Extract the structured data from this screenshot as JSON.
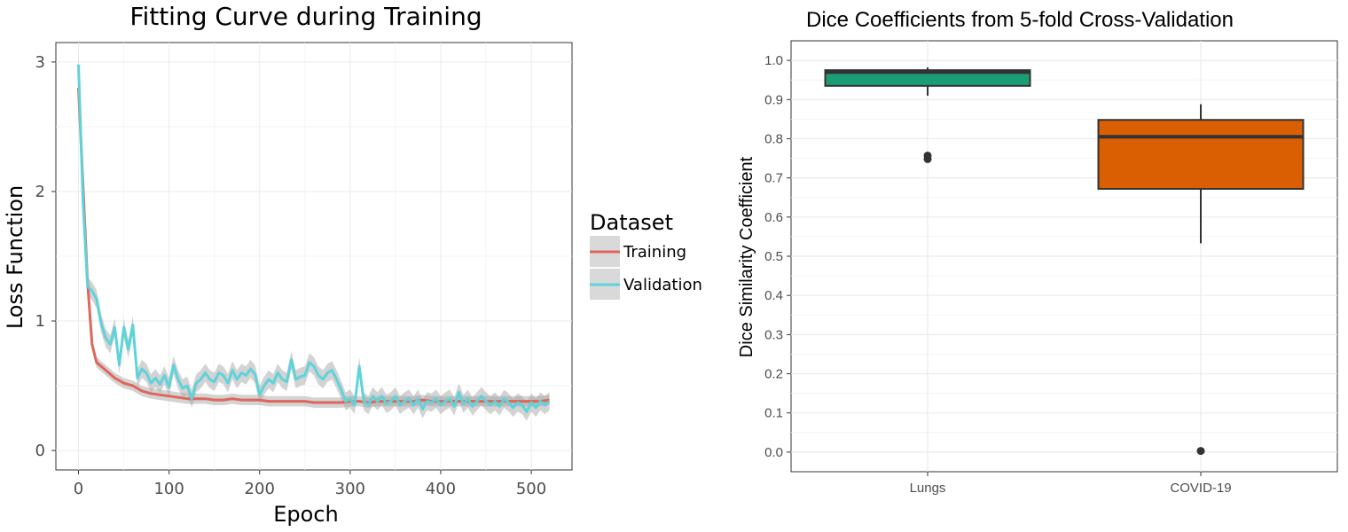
{
  "chart_data": [
    {
      "type": "line",
      "title": "Fitting Curve during Training",
      "xlabel": "Epoch",
      "ylabel": "Loss Function",
      "xlim": [
        -25,
        545
      ],
      "ylim": [
        -0.15,
        3.15
      ],
      "xticks": [
        0,
        100,
        200,
        300,
        400,
        500
      ],
      "yticks": [
        0,
        1,
        2,
        3
      ],
      "grid": true,
      "legend": {
        "title": "Dataset",
        "position": "right",
        "entries": [
          "Training",
          "Validation"
        ]
      },
      "colors": {
        "Training": "#E0655A",
        "Validation": "#5ED3DA",
        "band": "#a8a8a8"
      },
      "series": [
        {
          "name": "Training",
          "x": [
            0,
            10,
            15,
            20,
            30,
            40,
            50,
            60,
            70,
            80,
            90,
            100,
            110,
            120,
            130,
            140,
            150,
            160,
            170,
            180,
            190,
            200,
            210,
            220,
            230,
            240,
            250,
            260,
            270,
            280,
            290,
            300,
            310,
            320,
            330,
            340,
            350,
            360,
            370,
            380,
            390,
            400,
            410,
            420,
            430,
            440,
            450,
            460,
            470,
            480,
            490,
            500,
            510,
            520
          ],
          "y": [
            2.8,
            1.3,
            0.82,
            0.68,
            0.62,
            0.56,
            0.52,
            0.5,
            0.46,
            0.44,
            0.43,
            0.42,
            0.41,
            0.4,
            0.4,
            0.4,
            0.39,
            0.39,
            0.4,
            0.39,
            0.39,
            0.39,
            0.38,
            0.38,
            0.38,
            0.38,
            0.38,
            0.37,
            0.37,
            0.37,
            0.37,
            0.38,
            0.38,
            0.37,
            0.38,
            0.38,
            0.38,
            0.38,
            0.38,
            0.39,
            0.38,
            0.38,
            0.38,
            0.38,
            0.38,
            0.38,
            0.38,
            0.38,
            0.38,
            0.38,
            0.38,
            0.38,
            0.38,
            0.39
          ],
          "band": 0.04
        },
        {
          "name": "Validation",
          "x": [
            0,
            5,
            10,
            15,
            20,
            25,
            30,
            35,
            40,
            45,
            50,
            55,
            60,
            65,
            70,
            75,
            80,
            85,
            90,
            95,
            100,
            105,
            110,
            115,
            120,
            125,
            130,
            135,
            140,
            145,
            150,
            155,
            160,
            165,
            170,
            175,
            180,
            185,
            190,
            195,
            200,
            205,
            210,
            215,
            220,
            225,
            230,
            235,
            240,
            245,
            250,
            255,
            260,
            265,
            270,
            275,
            280,
            285,
            290,
            295,
            300,
            305,
            310,
            315,
            320,
            325,
            330,
            335,
            340,
            345,
            350,
            355,
            360,
            365,
            370,
            375,
            380,
            385,
            390,
            395,
            400,
            405,
            410,
            415,
            420,
            425,
            430,
            435,
            440,
            445,
            450,
            455,
            460,
            465,
            470,
            475,
            480,
            485,
            490,
            495,
            500,
            505,
            510,
            515,
            520
          ],
          "y": [
            2.98,
            1.92,
            1.27,
            1.23,
            1.17,
            0.98,
            0.87,
            0.82,
            0.95,
            0.66,
            0.95,
            0.78,
            0.97,
            0.56,
            0.63,
            0.6,
            0.52,
            0.56,
            0.51,
            0.58,
            0.49,
            0.66,
            0.55,
            0.48,
            0.5,
            0.4,
            0.52,
            0.55,
            0.6,
            0.55,
            0.53,
            0.6,
            0.58,
            0.52,
            0.62,
            0.55,
            0.6,
            0.58,
            0.63,
            0.59,
            0.43,
            0.5,
            0.55,
            0.52,
            0.6,
            0.55,
            0.53,
            0.7,
            0.55,
            0.57,
            0.58,
            0.68,
            0.65,
            0.58,
            0.55,
            0.6,
            0.62,
            0.55,
            0.47,
            0.38,
            0.4,
            0.35,
            0.65,
            0.38,
            0.35,
            0.42,
            0.38,
            0.42,
            0.36,
            0.38,
            0.42,
            0.35,
            0.38,
            0.4,
            0.35,
            0.4,
            0.32,
            0.38,
            0.37,
            0.4,
            0.35,
            0.38,
            0.4,
            0.34,
            0.45,
            0.36,
            0.4,
            0.34,
            0.38,
            0.42,
            0.38,
            0.35,
            0.38,
            0.34,
            0.4,
            0.37,
            0.33,
            0.37,
            0.35,
            0.3,
            0.37,
            0.33,
            0.38,
            0.35,
            0.38
          ],
          "band": 0.07
        }
      ]
    },
    {
      "type": "box",
      "title": "Dice Coefficients from 5-fold Cross-Validation",
      "xlabel": "",
      "ylabel": "Dice Similarity Coefficient",
      "ylim": [
        -0.05,
        1.05
      ],
      "yticks": [
        0.0,
        0.1,
        0.2,
        0.3,
        0.4,
        0.5,
        0.6,
        0.7,
        0.8,
        0.9,
        1.0
      ],
      "ytick_labels": [
        "0.0",
        "0.1",
        "0.2",
        "0.3",
        "0.4",
        "0.5",
        "0.6",
        "0.7",
        "0.8",
        "0.9",
        "1.0"
      ],
      "grid": true,
      "categories": [
        "Lungs",
        "COVID-19"
      ],
      "boxes": [
        {
          "category": "Lungs",
          "whisker_low": 0.91,
          "q1": 0.935,
          "median": 0.97,
          "q3": 0.975,
          "whisker_high": 0.982,
          "outliers": [
            0.757,
            0.748
          ],
          "color": "#1b9e77"
        },
        {
          "category": "COVID-19",
          "whisker_low": 0.533,
          "q1": 0.672,
          "median": 0.805,
          "q3": 0.848,
          "whisker_high": 0.888,
          "outliers": [
            0.003
          ],
          "color": "#d95f02"
        }
      ]
    }
  ]
}
